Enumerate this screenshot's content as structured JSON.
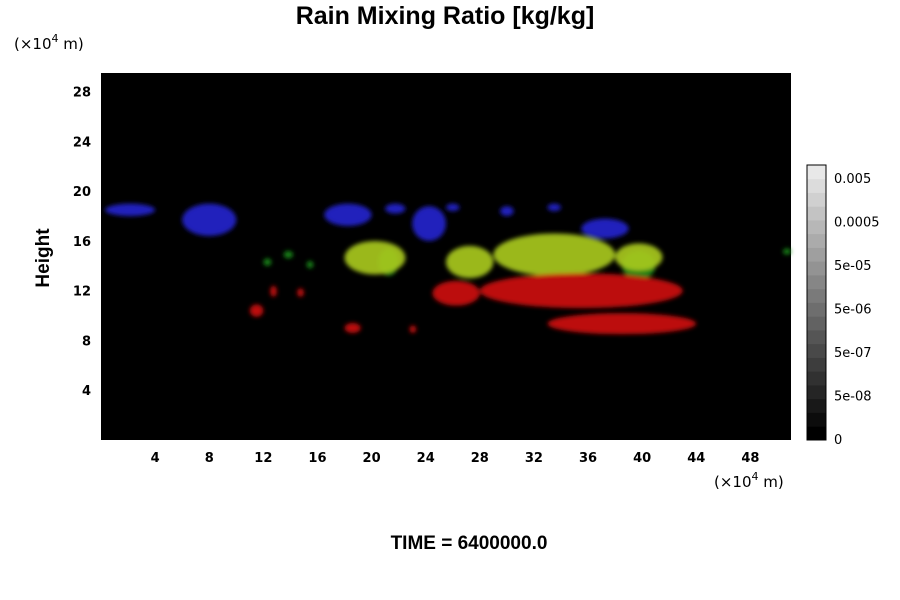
{
  "chart_data": {
    "type": "heatmap",
    "title": "Rain Mixing Ratio [kg/kg]",
    "ylabel": "Height",
    "xlabel": "",
    "x_unit": {
      "prefix": "(×10",
      "exp": "4",
      "suffix": " m)"
    },
    "y_unit": {
      "prefix": "(×10",
      "exp": "4",
      "suffix": " m)"
    },
    "x_ticks": [
      "4",
      "8",
      "12",
      "16",
      "20",
      "24",
      "28",
      "32",
      "36",
      "40",
      "44",
      "48"
    ],
    "y_ticks": [
      "4",
      "8",
      "12",
      "16",
      "20",
      "24",
      "28"
    ],
    "xlim": [
      0,
      51
    ],
    "ylim": [
      0,
      29.5
    ],
    "background": "#000000",
    "colorbar": {
      "labels": [
        "0.005",
        "0.0005",
        "5e-05",
        "5e-06",
        "5e-07",
        "5e-08",
        "0"
      ],
      "levels": 20
    },
    "series": [
      {
        "color": "#2222cc",
        "blobs": [
          {
            "x": [
              0.3,
              4.0
            ],
            "y": [
              18.0,
              19.0
            ]
          },
          {
            "x": [
              6.0,
              10.0
            ],
            "y": [
              16.4,
              19.0
            ]
          },
          {
            "x": [
              16.5,
              20.0
            ],
            "y": [
              17.2,
              19.0
            ]
          },
          {
            "x": [
              21.0,
              22.5
            ],
            "y": [
              18.2,
              19.0
            ]
          },
          {
            "x": [
              23.0,
              25.5
            ],
            "y": [
              16.0,
              18.8
            ]
          },
          {
            "x": [
              25.5,
              26.5
            ],
            "y": [
              18.4,
              19.0
            ]
          },
          {
            "x": [
              29.5,
              30.5
            ],
            "y": [
              18.0,
              18.8
            ]
          },
          {
            "x": [
              33.0,
              34.0
            ],
            "y": [
              18.4,
              19.0
            ]
          },
          {
            "x": [
              35.5,
              39.0
            ],
            "y": [
              16.2,
              17.8
            ]
          }
        ]
      },
      {
        "color": "#1a8a1a",
        "blobs": [
          {
            "x": [
              12.0,
              12.6
            ],
            "y": [
              14.0,
              14.6
            ]
          },
          {
            "x": [
              13.5,
              14.2
            ],
            "y": [
              14.6,
              15.2
            ]
          },
          {
            "x": [
              15.2,
              15.7
            ],
            "y": [
              13.8,
              14.4
            ]
          },
          {
            "x": [
              20.5,
              22.0
            ],
            "y": [
              13.2,
              15.4
            ]
          },
          {
            "x": [
              38.5,
              41.0
            ],
            "y": [
              12.9,
              15.2
            ]
          },
          {
            "x": [
              50.4,
              51.0
            ],
            "y": [
              14.9,
              15.4
            ]
          }
        ]
      },
      {
        "color": "#a8c820",
        "blobs": [
          {
            "x": [
              18.0,
              22.5
            ],
            "y": [
              13.3,
              16.0
            ]
          },
          {
            "x": [
              25.5,
              29.0
            ],
            "y": [
              13.0,
              15.6
            ]
          },
          {
            "x": [
              29.0,
              38.0
            ],
            "y": [
              13.2,
              16.6
            ]
          },
          {
            "x": [
              38.0,
              41.5
            ],
            "y": [
              13.6,
              15.8
            ]
          }
        ]
      },
      {
        "color": "#cc1010",
        "blobs": [
          {
            "x": [
              11.0,
              12.0
            ],
            "y": [
              9.9,
              10.9
            ]
          },
          {
            "x": [
              12.5,
              13.0
            ],
            "y": [
              11.5,
              12.4
            ]
          },
          {
            "x": [
              14.5,
              15.0
            ],
            "y": [
              11.5,
              12.2
            ]
          },
          {
            "x": [
              18.0,
              19.2
            ],
            "y": [
              8.6,
              9.4
            ]
          },
          {
            "x": [
              22.8,
              23.3
            ],
            "y": [
              8.6,
              9.2
            ]
          },
          {
            "x": [
              24.5,
              28.0
            ],
            "y": [
              10.8,
              12.8
            ]
          },
          {
            "x": [
              28.0,
              43.0
            ],
            "y": [
              10.6,
              13.4
            ]
          },
          {
            "x": [
              33.0,
              44.0
            ],
            "y": [
              8.5,
              10.2
            ]
          }
        ]
      }
    ]
  },
  "footer": {
    "time_label": "TIME = 6400000.0"
  }
}
